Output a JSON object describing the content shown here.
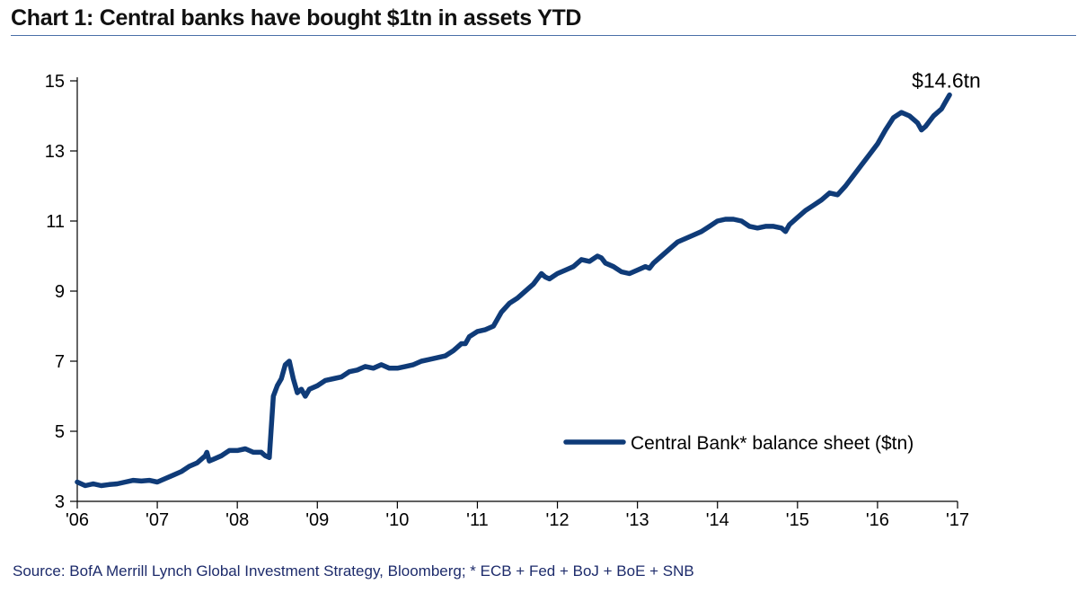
{
  "title": "Chart 1:  Central banks have bought $1tn in assets YTD",
  "source": "Source: BofA Merrill Lynch Global Investment Strategy, Bloomberg; * ECB + Fed + BoJ + BoE + SNB",
  "colors": {
    "line": "#0f3b78",
    "axis": "#000000",
    "title_rule": "#4a6fa8",
    "source_text": "#1d2b6b"
  },
  "chart_data": {
    "type": "line",
    "title": "Chart 1:  Central banks have bought $1tn in assets YTD",
    "xlabel": "",
    "ylabel": "",
    "xlim": [
      2006.0,
      2017.0
    ],
    "ylim": [
      3,
      15
    ],
    "y_ticks": [
      3,
      5,
      7,
      9,
      11,
      13,
      15
    ],
    "x_ticks": [
      {
        "value": 2006,
        "label": "'06"
      },
      {
        "value": 2007,
        "label": "'07"
      },
      {
        "value": 2008,
        "label": "'08"
      },
      {
        "value": 2009,
        "label": "'09"
      },
      {
        "value": 2010,
        "label": "'10"
      },
      {
        "value": 2011,
        "label": "'11"
      },
      {
        "value": 2012,
        "label": "'12"
      },
      {
        "value": 2013,
        "label": "'13"
      },
      {
        "value": 2014,
        "label": "'14"
      },
      {
        "value": 2015,
        "label": "'15"
      },
      {
        "value": 2016,
        "label": "'16"
      },
      {
        "value": 2017,
        "label": "'17"
      }
    ],
    "grid": false,
    "legend_position": "bottom-right",
    "annotation": {
      "text": "$14.6tn",
      "x": 2016.9,
      "y": 14.6
    },
    "series": [
      {
        "name": "Central Bank* balance sheet ($tn)",
        "x": [
          2006.0,
          2006.1,
          2006.2,
          2006.3,
          2006.4,
          2006.5,
          2006.6,
          2006.7,
          2006.8,
          2006.9,
          2007.0,
          2007.1,
          2007.2,
          2007.3,
          2007.4,
          2007.5,
          2007.6,
          2007.62,
          2007.65,
          2007.7,
          2007.8,
          2007.9,
          2008.0,
          2008.1,
          2008.2,
          2008.3,
          2008.35,
          2008.4,
          2008.45,
          2008.5,
          2008.55,
          2008.6,
          2008.65,
          2008.7,
          2008.75,
          2008.8,
          2008.85,
          2008.9,
          2009.0,
          2009.1,
          2009.2,
          2009.3,
          2009.4,
          2009.5,
          2009.6,
          2009.7,
          2009.8,
          2009.9,
          2010.0,
          2010.1,
          2010.2,
          2010.3,
          2010.4,
          2010.5,
          2010.6,
          2010.7,
          2010.8,
          2010.85,
          2010.9,
          2011.0,
          2011.1,
          2011.2,
          2011.3,
          2011.4,
          2011.5,
          2011.6,
          2011.7,
          2011.8,
          2011.85,
          2011.9,
          2012.0,
          2012.1,
          2012.2,
          2012.3,
          2012.4,
          2012.5,
          2012.55,
          2012.6,
          2012.7,
          2012.8,
          2012.9,
          2013.0,
          2013.1,
          2013.15,
          2013.2,
          2013.3,
          2013.4,
          2013.5,
          2013.6,
          2013.7,
          2013.8,
          2013.9,
          2014.0,
          2014.1,
          2014.2,
          2014.3,
          2014.4,
          2014.5,
          2014.6,
          2014.7,
          2014.8,
          2014.85,
          2014.9,
          2015.0,
          2015.1,
          2015.2,
          2015.3,
          2015.4,
          2015.5,
          2015.6,
          2015.7,
          2015.8,
          2015.9,
          2016.0,
          2016.1,
          2016.2,
          2016.3,
          2016.4,
          2016.5,
          2016.55,
          2016.6,
          2016.7,
          2016.8,
          2016.85,
          2016.9
        ],
        "values": [
          3.55,
          3.45,
          3.5,
          3.45,
          3.48,
          3.5,
          3.55,
          3.6,
          3.58,
          3.6,
          3.55,
          3.65,
          3.75,
          3.85,
          4.0,
          4.1,
          4.3,
          4.4,
          4.15,
          4.2,
          4.3,
          4.45,
          4.45,
          4.5,
          4.4,
          4.4,
          4.3,
          4.25,
          6.0,
          6.3,
          6.5,
          6.9,
          7.0,
          6.5,
          6.1,
          6.2,
          6.0,
          6.2,
          6.3,
          6.45,
          6.5,
          6.55,
          6.7,
          6.75,
          6.85,
          6.8,
          6.9,
          6.8,
          6.8,
          6.85,
          6.9,
          7.0,
          7.05,
          7.1,
          7.15,
          7.3,
          7.5,
          7.5,
          7.7,
          7.85,
          7.9,
          8.0,
          8.4,
          8.65,
          8.8,
          9.0,
          9.2,
          9.5,
          9.4,
          9.35,
          9.5,
          9.6,
          9.7,
          9.9,
          9.85,
          10.0,
          9.95,
          9.8,
          9.7,
          9.55,
          9.5,
          9.6,
          9.7,
          9.65,
          9.8,
          10.0,
          10.2,
          10.4,
          10.5,
          10.6,
          10.7,
          10.85,
          11.0,
          11.05,
          11.05,
          11.0,
          10.85,
          10.8,
          10.85,
          10.85,
          10.8,
          10.7,
          10.9,
          11.1,
          11.3,
          11.45,
          11.6,
          11.8,
          11.75,
          12.0,
          12.3,
          12.6,
          12.9,
          13.2,
          13.6,
          13.95,
          14.1,
          14.0,
          13.8,
          13.6,
          13.7,
          14.0,
          14.2,
          14.4,
          14.6
        ]
      }
    ]
  }
}
